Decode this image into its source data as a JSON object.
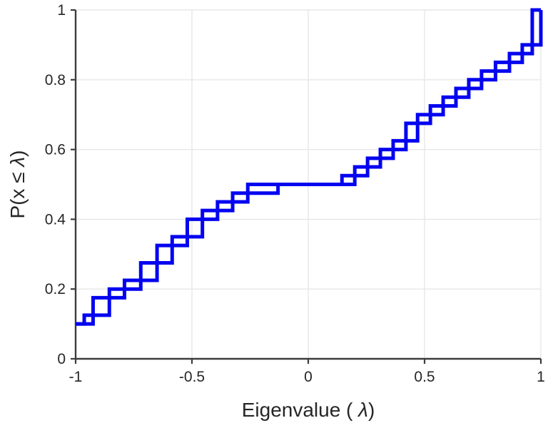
{
  "chart_data": {
    "type": "line",
    "subtype": "ecdf-step-double-staircase",
    "title": "",
    "xlabel": "Eigenvalue (  λ)",
    "ylabel": "P(x ≤ λ)",
    "xlim": [
      -1,
      1
    ],
    "ylim": [
      0,
      1
    ],
    "grid": true,
    "legend_position": "none",
    "xticks": {
      "values": [
        -1,
        -0.5,
        0,
        0.5,
        1
      ],
      "labels": [
        "-1",
        "-0.5",
        "0",
        "0.5",
        "1"
      ]
    },
    "yticks": {
      "values": [
        0,
        0.2,
        0.4,
        0.6,
        0.8,
        1
      ],
      "labels": [
        "0",
        "0.2",
        "0.4",
        "0.6",
        "0.8",
        "1"
      ]
    },
    "series": [
      {
        "name": "eigenvalue-cdf",
        "color": "#0404f0",
        "line_width": 5,
        "render": "staircase-pre-and-post",
        "points": [
          [
            -1.0,
            0.1
          ],
          [
            -0.963,
            0.1
          ],
          [
            -0.925,
            0.125
          ],
          [
            -0.855,
            0.175
          ],
          [
            -0.79,
            0.2
          ],
          [
            -0.72,
            0.225
          ],
          [
            -0.65,
            0.275
          ],
          [
            -0.585,
            0.325
          ],
          [
            -0.52,
            0.35
          ],
          [
            -0.455,
            0.4
          ],
          [
            -0.39,
            0.425
          ],
          [
            -0.325,
            0.45
          ],
          [
            -0.26,
            0.475
          ],
          [
            -0.13,
            0.5
          ],
          [
            0.145,
            0.5
          ],
          [
            0.2,
            0.525
          ],
          [
            0.255,
            0.55
          ],
          [
            0.31,
            0.575
          ],
          [
            0.365,
            0.6
          ],
          [
            0.42,
            0.625
          ],
          [
            0.47,
            0.675
          ],
          [
            0.525,
            0.7
          ],
          [
            0.58,
            0.725
          ],
          [
            0.635,
            0.75
          ],
          [
            0.69,
            0.775
          ],
          [
            0.745,
            0.8
          ],
          [
            0.805,
            0.825
          ],
          [
            0.865,
            0.85
          ],
          [
            0.92,
            0.875
          ],
          [
            0.963,
            0.9
          ],
          [
            1.0,
            1.0
          ]
        ]
      }
    ],
    "colors": {
      "background": "#ffffff",
      "axis": "#3c3c3c",
      "grid": "#e7e7e7",
      "text": "#262626",
      "line": "#0404f0"
    }
  }
}
